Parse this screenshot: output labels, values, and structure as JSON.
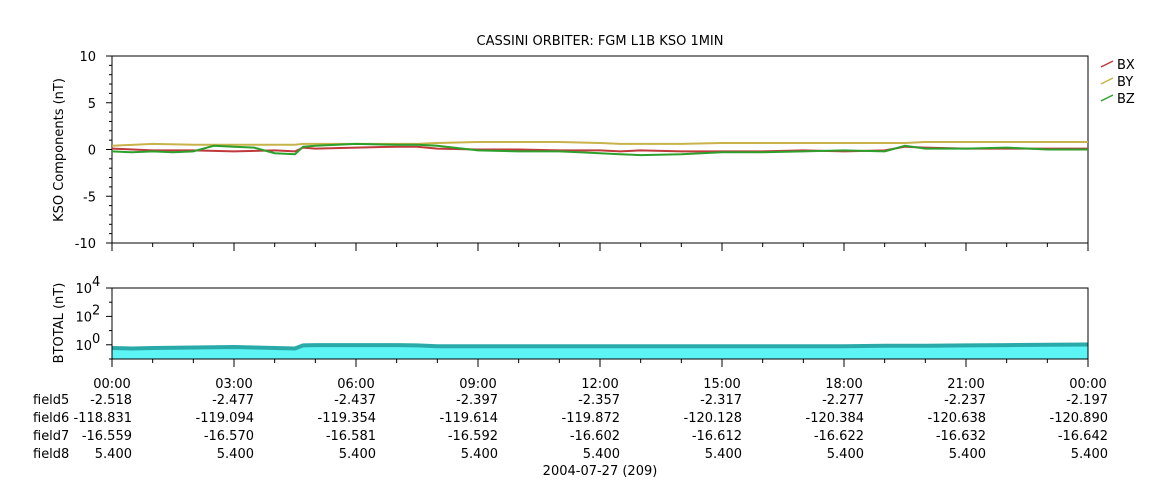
{
  "title": "CASSINI ORBITER: FGM L1B KSO 1MIN",
  "date_label": "2004-07-27 (209)",
  "x_tick_labels": [
    "00:00",
    "03:00",
    "06:00",
    "09:00",
    "12:00",
    "15:00",
    "18:00",
    "21:00",
    "00:00"
  ],
  "ephemeris": [
    {
      "label": "field5",
      "values": [
        "-2.518",
        "-2.477",
        "-2.437",
        "-2.397",
        "-2.357",
        "-2.317",
        "-2.277",
        "-2.237",
        "-2.197"
      ]
    },
    {
      "label": "field6",
      "values": [
        "-118.831",
        "-119.094",
        "-119.354",
        "-119.614",
        "-119.872",
        "-120.128",
        "-120.384",
        "-120.638",
        "-120.890"
      ]
    },
    {
      "label": "field7",
      "values": [
        "-16.559",
        "-16.570",
        "-16.581",
        "-16.592",
        "-16.602",
        "-16.612",
        "-16.622",
        "-16.632",
        "-16.642"
      ]
    },
    {
      "label": "field8",
      "values": [
        "5.400",
        "5.400",
        "5.400",
        "5.400",
        "5.400",
        "5.400",
        "5.400",
        "5.400",
        "5.400"
      ]
    }
  ],
  "colors": {
    "BX": "#c0393b",
    "BY": "#c8b24a",
    "BZ": "#2ca02c",
    "btotal_fill": "#5cf4f4",
    "btotal_line": "#2aa9a9"
  },
  "chart_data": [
    {
      "type": "line",
      "ylabel": "KSO Components (nT)",
      "xlim": [
        0,
        24
      ],
      "ylim": [
        -10,
        10
      ],
      "y_ticks": [
        -10,
        -5,
        0,
        5,
        10
      ],
      "legend_placement": "right",
      "series": [
        {
          "name": "BX",
          "x": [
            0,
            1,
            2,
            3,
            4,
            4.5,
            4.7,
            5,
            6,
            7,
            7.5,
            8,
            9,
            10,
            11,
            12,
            12.5,
            13,
            14,
            15,
            16,
            17,
            18,
            19,
            19.5,
            20,
            21,
            22,
            23,
            24
          ],
          "y": [
            0.1,
            -0.1,
            -0.1,
            -0.2,
            -0.1,
            -0.2,
            0.2,
            0.1,
            0.2,
            0.3,
            0.3,
            0.1,
            0,
            0,
            -0.1,
            -0.1,
            -0.2,
            -0.1,
            -0.2,
            -0.2,
            -0.2,
            -0.1,
            -0.2,
            -0.1,
            0.3,
            0.2,
            0.1,
            0.1,
            0.1,
            0.1
          ]
        },
        {
          "name": "BY",
          "x": [
            0,
            1,
            2,
            3,
            4,
            4.5,
            4.7,
            5,
            6,
            7,
            7.5,
            8,
            9,
            10,
            11,
            12,
            12.5,
            13,
            14,
            15,
            16,
            17,
            18,
            19,
            19.5,
            20,
            21,
            22,
            23,
            24
          ],
          "y": [
            0.4,
            0.6,
            0.5,
            0.5,
            0.5,
            0.5,
            0.6,
            0.6,
            0.6,
            0.6,
            0.6,
            0.7,
            0.8,
            0.8,
            0.8,
            0.7,
            0.6,
            0.6,
            0.6,
            0.7,
            0.7,
            0.7,
            0.7,
            0.7,
            0.7,
            0.8,
            0.8,
            0.8,
            0.8,
            0.8
          ]
        },
        {
          "name": "BZ",
          "x": [
            0,
            0.5,
            1,
            1.5,
            2,
            2.5,
            3,
            3.5,
            4,
            4.5,
            4.7,
            5,
            6,
            7,
            7.5,
            8,
            9,
            10,
            11,
            11.5,
            12,
            12.5,
            13,
            14,
            15,
            16,
            17,
            18,
            19,
            19.5,
            20,
            21,
            22,
            23,
            24
          ],
          "y": [
            -0.2,
            -0.3,
            -0.2,
            -0.3,
            -0.2,
            0.4,
            0.3,
            0.2,
            -0.4,
            -0.5,
            0.3,
            0.4,
            0.6,
            0.5,
            0.5,
            0.4,
            -0.1,
            -0.2,
            -0.2,
            -0.3,
            -0.4,
            -0.5,
            -0.6,
            -0.5,
            -0.3,
            -0.3,
            -0.2,
            -0.1,
            -0.2,
            0.4,
            0.1,
            0.1,
            0.2,
            0,
            0
          ]
        }
      ]
    },
    {
      "type": "area",
      "ylabel": "BTOTAL (nT)",
      "xlim": [
        0,
        24
      ],
      "y_scale": "log",
      "ylim": [
        0.1,
        10000
      ],
      "y_ticks": [
        {
          "base": "10",
          "exp": "0"
        },
        {
          "base": "10",
          "exp": "2"
        },
        {
          "base": "10",
          "exp": "4"
        }
      ],
      "series": [
        {
          "x": [
            0,
            0.5,
            1,
            2,
            3,
            3.5,
            4,
            4.5,
            4.7,
            5,
            6,
            7,
            7.5,
            8,
            9,
            10,
            11,
            12,
            13,
            14,
            15,
            16,
            17,
            18,
            19,
            20,
            21,
            22,
            23,
            24
          ],
          "y": [
            0.6,
            0.55,
            0.6,
            0.65,
            0.7,
            0.65,
            0.6,
            0.55,
            0.9,
            0.95,
            0.95,
            0.95,
            0.9,
            0.8,
            0.8,
            0.8,
            0.8,
            0.8,
            0.8,
            0.8,
            0.8,
            0.8,
            0.8,
            0.8,
            0.85,
            0.85,
            0.9,
            0.95,
            1.0,
            1.05
          ]
        }
      ]
    }
  ]
}
